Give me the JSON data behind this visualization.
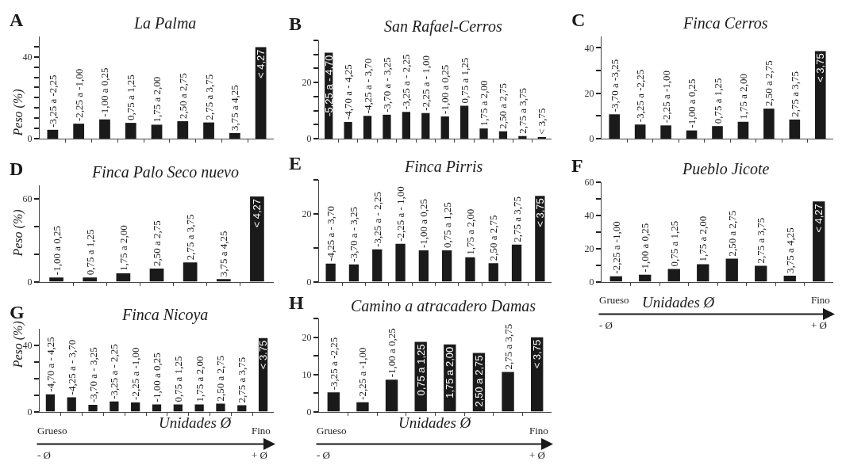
{
  "chart_data": [
    {
      "type": "bar",
      "title": "La Palma",
      "ylabel": "Peso (%)",
      "annotations": [
        "A"
      ],
      "color": "#1a1a1a",
      "ylim": [
        0,
        50
      ],
      "yticks": [
        0,
        {
          "value": 5,
          "label": null
        },
        {
          "value": 10,
          "label": null
        },
        {
          "value": 15,
          "label": null
        },
        {
          "value": 20,
          "label": null
        },
        {
          "value": 25,
          "label": null
        },
        {
          "value": 30,
          "label": null
        },
        {
          "value": 35,
          "label": null
        },
        40,
        {
          "value": 45,
          "label": null
        }
      ],
      "categories": [
        "-3,25 a -2,25",
        "-2,25 a -1,00",
        "-1,00 a 0,25",
        "0,75 a 1,25",
        "1,75 a 2,00",
        "2,50 a 2,75",
        "2,75 a 3,75",
        "3,75 a 4,25",
        "< 4,27"
      ],
      "values": [
        4.3,
        7.3,
        9.4,
        7.7,
        6.8,
        8.5,
        7.9,
        2.7,
        44.8
      ]
    },
    {
      "type": "bar",
      "title": "San Rafael-Cerros",
      "annotations": [
        "B"
      ],
      "color": "#1a1a1a",
      "ylim": [
        0,
        35
      ],
      "yticks": [
        0,
        {
          "value": 5,
          "label": null
        },
        {
          "value": 10,
          "label": null
        },
        {
          "value": 15,
          "label": null
        },
        20,
        {
          "value": 25,
          "label": null
        },
        {
          "value": 30,
          "label": null
        },
        {
          "value": 35,
          "label": null
        }
      ],
      "categories": [
        "-5,25 a - 4,70",
        "-4,70 a - 4,25",
        "-4,25 a - 3,70",
        "-3,70 a - 3,25",
        "-3,25 a - 2,25",
        "-2,25 a - 1,00",
        "-1,00 a 0,25",
        "0,75 a 1,25",
        "1,75 a 2,00",
        "2,50 a 2,75",
        "2,75 a 3,75",
        "< 3,75"
      ],
      "values": [
        30.6,
        5.9,
        8.1,
        8.5,
        9.5,
        9.1,
        7.9,
        11.7,
        3.6,
        2.6,
        0.9,
        0.3
      ]
    },
    {
      "type": "bar",
      "title": "Finca Cerros",
      "annotations": [
        "C"
      ],
      "color": "#1a1a1a",
      "ylim": [
        0,
        45
      ],
      "yticks": [
        0,
        {
          "value": 10,
          "label": null
        },
        20,
        {
          "value": 30,
          "label": null
        },
        40
      ],
      "categories": [
        "-3,70 a -3,25",
        "-3,25 a -2,25",
        "-2,25 a -1,00",
        "-1,00 a 0,25",
        "0,75 a 1,25",
        "1,75 a 2,00",
        "2,50 a 2,75",
        "2,75 a 3,75",
        "< 3,75"
      ],
      "values": [
        10.7,
        6.2,
        5.8,
        3.6,
        5.5,
        7.4,
        13.2,
        8.4,
        38.6
      ]
    },
    {
      "type": "bar",
      "title": "Finca Palo Seco nuevo",
      "ylabel": "Peso (%)",
      "annotations": [
        "D"
      ],
      "color": "#1a1a1a",
      "ylim": [
        0,
        70
      ],
      "yticks": [
        0,
        {
          "value": 20,
          "label": null
        },
        {
          "value": 40,
          "label": null
        },
        60
      ],
      "categories": [
        "-1,00 a 0,25",
        "0,75 a 1,25",
        "1,75 a 2,00",
        "2,50 a 2,75",
        "2,75 a 3,75",
        "3,75 a 4,25",
        "< 4,27"
      ],
      "values": [
        3.1,
        3.1,
        6.0,
        9.5,
        14.0,
        1.9,
        61.7
      ]
    },
    {
      "type": "bar",
      "title": "Finca Pirris",
      "annotations": [
        "E"
      ],
      "color": "#1a1a1a",
      "ylim": [
        0,
        30
      ],
      "yticks": [
        0,
        {
          "value": 10,
          "label": null
        },
        20,
        {
          "value": 30,
          "label": null
        }
      ],
      "categories": [
        "-4,25 a - 3,70",
        "-3,70 a - 3,25",
        "-3,25 a - 2,25",
        "-2,25 a - 1,00",
        "-1,00 a 0,25",
        "0,75 a 1,25",
        "1,75 a 2,00",
        "2,50 a 2,75",
        "2,75 a 3,75",
        "< 3,75"
      ],
      "values": [
        5.3,
        5.1,
        9.5,
        11.1,
        9.2,
        9.2,
        7.2,
        5.4,
        10.9,
        25.2
      ]
    },
    {
      "type": "bar",
      "title": "Pueblo Jicote",
      "xlabel": "Unidades Ø",
      "annotations": [
        "F",
        "Grueso",
        "Fino",
        "- Ø",
        "+ Ø"
      ],
      "color": "#1a1a1a",
      "ylim": [
        0,
        60
      ],
      "yticks": [
        0,
        {
          "value": 10,
          "label": null
        },
        20,
        {
          "value": 30,
          "label": null
        },
        40,
        {
          "value": 50,
          "label": null
        },
        60
      ],
      "categories": [
        "-2,25 a -1,00",
        "-1,00 a 0,25",
        "0,75 a 1,25",
        "1,75 a 2,00",
        "2,50 a 2,75",
        "2,75 a 3,75",
        "3,75 a 4,25",
        "< 4,27"
      ],
      "values": [
        3.3,
        4.2,
        7.7,
        10.5,
        13.8,
        9.5,
        3.6,
        48.3
      ]
    },
    {
      "type": "bar",
      "title": "Finca Nicoya",
      "ylabel": "Peso (%)",
      "xlabel": "Unidades Ø",
      "annotations": [
        "G",
        "Grueso",
        "Fino",
        "- Ø",
        "+ Ø"
      ],
      "color": "#1a1a1a",
      "ylim": [
        0,
        50
      ],
      "yticks": [
        0,
        {
          "value": 10,
          "label": null
        },
        {
          "value": 20,
          "label": null
        },
        {
          "value": 30,
          "label": null
        },
        40
      ],
      "categories": [
        "-4,70 a - 4,25",
        "-4,25 a - 3,70",
        "-3,70 a - 3,25",
        "-3,25 a - 2,25",
        "-2,25 a -1,00",
        "-1,00 a 0,25",
        "0,75 a 1,25",
        "1,75 a 2,00",
        "2,50 a 2,75",
        "2,75 a 3,75",
        "< 3.75"
      ],
      "values": [
        10.4,
        8.7,
        4.1,
        6.1,
        5.6,
        4.4,
        4.4,
        4.4,
        4.8,
        3.9,
        44.4
      ]
    },
    {
      "type": "bar",
      "title": "Camino a atracadero Damas",
      "xlabel": "Unidades Ø",
      "annotations": [
        "H",
        "Grueso",
        "Fino",
        "- Ø",
        "+ Ø"
      ],
      "color": "#1a1a1a",
      "ylim": [
        0,
        25
      ],
      "yticks": [
        0,
        {
          "value": 5,
          "label": null
        },
        10,
        {
          "value": 15,
          "label": null
        },
        20,
        {
          "value": 25,
          "label": null
        }
      ],
      "categories": [
        "-3,25 a -2,25",
        "-2,25 a -1,00",
        "-1,00 a 0,25",
        "0,75 a 1,25",
        "1,75 a 2,00",
        "2,50 a 2,75",
        "2,75 a 3,75",
        "< 3,75"
      ],
      "values": [
        5.2,
        2.5,
        8.6,
        18.8,
        18.1,
        15.8,
        10.7,
        20.0
      ]
    }
  ]
}
